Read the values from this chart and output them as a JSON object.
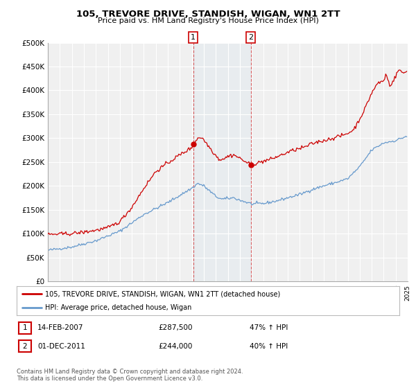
{
  "title": "105, TREVORE DRIVE, STANDISH, WIGAN, WN1 2TT",
  "subtitle": "Price paid vs. HM Land Registry's House Price Index (HPI)",
  "xlim": [
    1995,
    2025
  ],
  "ylim": [
    0,
    500000
  ],
  "yticks": [
    0,
    50000,
    100000,
    150000,
    200000,
    250000,
    300000,
    350000,
    400000,
    450000,
    500000
  ],
  "ytick_labels": [
    "£0",
    "£50K",
    "£100K",
    "£150K",
    "£200K",
    "£250K",
    "£300K",
    "£350K",
    "£400K",
    "£450K",
    "£500K"
  ],
  "transaction1_date": 2007.12,
  "transaction1_price": 287500,
  "transaction1_label": "14-FEB-2007",
  "transaction1_amount": "£287,500",
  "transaction1_hpi": "47% ↑ HPI",
  "transaction2_date": 2011.92,
  "transaction2_price": 244000,
  "transaction2_label": "01-DEC-2011",
  "transaction2_amount": "£244,000",
  "transaction2_hpi": "40% ↑ HPI",
  "house_color": "#cc0000",
  "hpi_color": "#6699cc",
  "background_color": "#ffffff",
  "plot_bg_color": "#f0f0f0",
  "grid_color": "#ffffff",
  "marker_color": "#cc0000",
  "legend_label1": "105, TREVORE DRIVE, STANDISH, WIGAN, WN1 2TT (detached house)",
  "legend_label2": "HPI: Average price, detached house, Wigan",
  "box_color": "#cc0000",
  "footnote": "Contains HM Land Registry data © Crown copyright and database right 2024.\nThis data is licensed under the Open Government Licence v3.0.",
  "hpi_anchors_t": [
    1995.0,
    1997.0,
    1999.0,
    2001.0,
    2003.0,
    2005.0,
    2007.0,
    2007.5,
    2008.0,
    2009.0,
    2009.5,
    2010.5,
    2011.0,
    2012.0,
    2013.0,
    2014.0,
    2015.0,
    2016.0,
    2017.0,
    2018.0,
    2019.0,
    2020.0,
    2021.0,
    2022.0,
    2023.0,
    2024.0,
    2025.0
  ],
  "hpi_anchors_p": [
    65000,
    72000,
    85000,
    105000,
    140000,
    165000,
    195000,
    205000,
    200000,
    178000,
    172000,
    175000,
    170000,
    162000,
    163000,
    168000,
    175000,
    182000,
    192000,
    200000,
    207000,
    215000,
    240000,
    275000,
    290000,
    295000,
    305000
  ],
  "house_anchors_t": [
    1995.0,
    1997.0,
    1998.0,
    1999.0,
    2000.0,
    2001.0,
    2002.0,
    2003.0,
    2004.0,
    2005.0,
    2006.0,
    2007.0,
    2007.12,
    2007.5,
    2007.8,
    2008.2,
    2008.8,
    2009.3,
    2009.8,
    2010.0,
    2010.5,
    2011.0,
    2011.5,
    2011.92,
    2012.5,
    2013.0,
    2013.5,
    2014.0,
    2014.5,
    2015.0,
    2015.5,
    2016.0,
    2016.5,
    2017.0,
    2017.5,
    2018.0,
    2018.5,
    2019.0,
    2019.5,
    2020.0,
    2020.5,
    2021.0,
    2021.5,
    2022.0,
    2022.5,
    2023.0,
    2023.2,
    2023.5,
    2023.8,
    2024.0,
    2024.3,
    2024.6,
    2024.9
  ],
  "house_anchors_p": [
    98000,
    100000,
    103000,
    107000,
    112000,
    125000,
    155000,
    195000,
    230000,
    248000,
    265000,
    280000,
    287500,
    300000,
    302000,
    290000,
    270000,
    255000,
    258000,
    262000,
    265000,
    258000,
    250000,
    244000,
    248000,
    252000,
    255000,
    260000,
    265000,
    270000,
    275000,
    278000,
    282000,
    288000,
    292000,
    295000,
    298000,
    302000,
    305000,
    310000,
    318000,
    340000,
    365000,
    395000,
    415000,
    420000,
    435000,
    410000,
    420000,
    430000,
    445000,
    435000,
    440000
  ]
}
